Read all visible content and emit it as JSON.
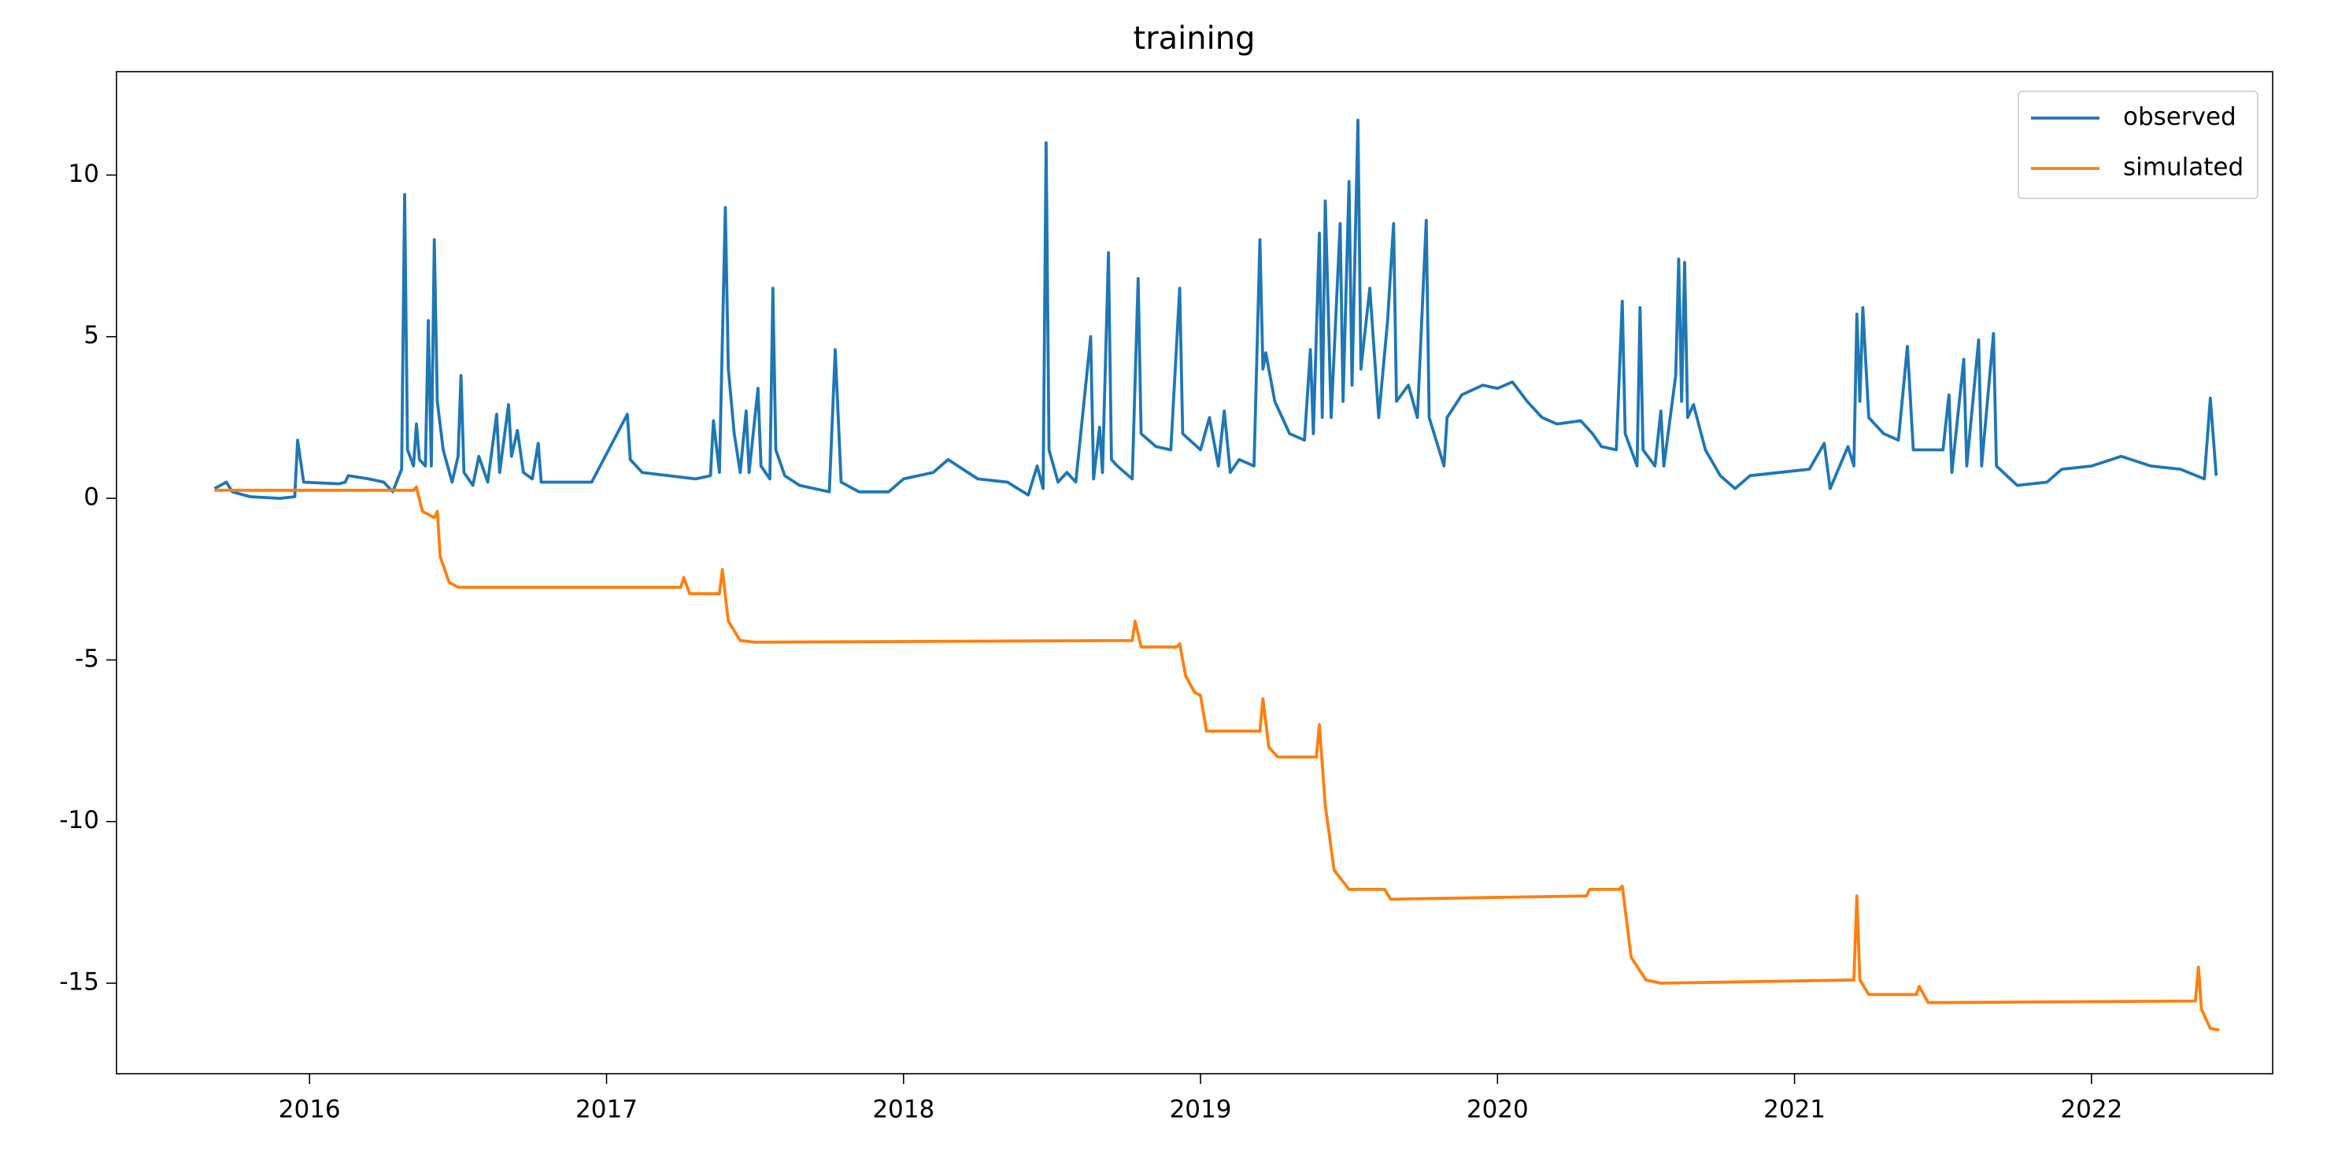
{
  "chart_data": {
    "type": "line",
    "title": "training",
    "xlim": [
      2015.35,
      2022.61
    ],
    "xticks": [
      2016,
      2017,
      2018,
      2019,
      2020,
      2021,
      2022
    ],
    "ylim": [
      -17.8,
      13.2
    ],
    "yticks": [
      -15,
      -10,
      -5,
      0,
      5,
      10
    ],
    "legend": "upper right",
    "series": [
      {
        "name": "observed",
        "color": "#1f77b4",
        "x": [
          2015.68,
          2015.72,
          2015.74,
          2015.8,
          2015.9,
          2015.95,
          2015.96,
          2015.98,
          2016.1,
          2016.12,
          2016.13,
          2016.2,
          2016.25,
          2016.28,
          2016.31,
          2016.32,
          2016.33,
          2016.35,
          2016.36,
          2016.37,
          2016.39,
          2016.4,
          2016.41,
          2016.42,
          2016.43,
          2016.45,
          2016.48,
          2016.5,
          2016.51,
          2016.52,
          2016.55,
          2016.57,
          2016.6,
          2016.63,
          2016.64,
          2016.67,
          2016.68,
          2016.7,
          2016.72,
          2016.75,
          2016.77,
          2016.78,
          2016.95,
          2017.07,
          2017.08,
          2017.12,
          2017.3,
          2017.35,
          2017.36,
          2017.38,
          2017.4,
          2017.41,
          2017.43,
          2017.45,
          2017.47,
          2017.48,
          2017.51,
          2017.52,
          2017.55,
          2017.56,
          2017.57,
          2017.6,
          2017.65,
          2017.75,
          2017.77,
          2017.79,
          2017.85,
          2017.95,
          2018.0,
          2018.1,
          2018.15,
          2018.2,
          2018.25,
          2018.35,
          2018.42,
          2018.45,
          2018.47,
          2018.48,
          2018.49,
          2018.52,
          2018.55,
          2018.58,
          2018.63,
          2018.64,
          2018.66,
          2018.67,
          2018.69,
          2018.7,
          2018.72,
          2018.77,
          2018.79,
          2018.8,
          2018.85,
          2018.9,
          2018.93,
          2018.94,
          2019.0,
          2019.03,
          2019.06,
          2019.08,
          2019.1,
          2019.13,
          2019.18,
          2019.2,
          2019.21,
          2019.22,
          2019.25,
          2019.3,
          2019.35,
          2019.37,
          2019.38,
          2019.4,
          2019.41,
          2019.42,
          2019.44,
          2019.47,
          2019.48,
          2019.5,
          2019.51,
          2019.53,
          2019.54,
          2019.57,
          2019.6,
          2019.63,
          2019.65,
          2019.66,
          2019.7,
          2019.73,
          2019.76,
          2019.77,
          2019.82,
          2019.83,
          2019.88,
          2019.95,
          2020.0,
          2020.05,
          2020.1,
          2020.15,
          2020.2,
          2020.28,
          2020.32,
          2020.35,
          2020.4,
          2020.42,
          2020.43,
          2020.47,
          2020.48,
          2020.49,
          2020.53,
          2020.55,
          2020.56,
          2020.6,
          2020.61,
          2020.62,
          2020.63,
          2020.64,
          2020.66,
          2020.7,
          2020.75,
          2020.8,
          2020.85,
          2020.95,
          2021.05,
          2021.1,
          2021.11,
          2021.12,
          2021.18,
          2021.2,
          2021.21,
          2021.22,
          2021.23,
          2021.25,
          2021.3,
          2021.35,
          2021.38,
          2021.4,
          2021.5,
          2021.52,
          2021.53,
          2021.57,
          2021.58,
          2021.62,
          2021.63,
          2021.67,
          2021.68,
          2021.75,
          2021.85,
          2021.9,
          2022.0,
          2022.1,
          2022.2,
          2022.3,
          2022.38,
          2022.4,
          2022.42
        ],
        "values": [
          0.3,
          0.5,
          0.2,
          0.05,
          0.0,
          0.05,
          1.8,
          0.5,
          0.45,
          0.5,
          0.7,
          0.6,
          0.5,
          0.2,
          0.9,
          9.4,
          1.5,
          1.0,
          2.3,
          1.2,
          1.0,
          5.5,
          1.0,
          8.0,
          3.0,
          1.5,
          0.5,
          1.3,
          3.8,
          0.8,
          0.4,
          1.3,
          0.5,
          2.6,
          0.8,
          2.9,
          1.3,
          2.1,
          0.8,
          0.6,
          1.7,
          0.5,
          0.5,
          2.6,
          1.2,
          0.8,
          0.6,
          0.7,
          2.4,
          0.8,
          9.0,
          4.0,
          2.0,
          0.8,
          2.7,
          0.8,
          3.4,
          1.0,
          0.6,
          6.5,
          1.5,
          0.7,
          0.4,
          0.2,
          4.6,
          0.5,
          0.2,
          0.2,
          0.6,
          0.8,
          1.2,
          0.9,
          0.6,
          0.5,
          0.1,
          1.0,
          0.3,
          11.0,
          1.5,
          0.5,
          0.8,
          0.5,
          5.0,
          0.6,
          2.2,
          0.8,
          7.6,
          1.2,
          1.0,
          0.6,
          6.8,
          2.0,
          1.6,
          1.5,
          6.5,
          2.0,
          1.5,
          2.5,
          1.0,
          2.7,
          0.8,
          1.2,
          1.0,
          8.0,
          4.0,
          4.5,
          3.0,
          2.0,
          1.8,
          4.6,
          2.0,
          8.2,
          2.5,
          9.2,
          2.5,
          8.5,
          3.0,
          9.8,
          3.5,
          11.7,
          4.0,
          6.5,
          2.5,
          5.5,
          8.5,
          3.0,
          3.5,
          2.5,
          8.6,
          2.5,
          1.0,
          2.5,
          3.2,
          3.5,
          3.4,
          3.6,
          3.0,
          2.5,
          2.3,
          2.4,
          2.0,
          1.6,
          1.5,
          6.1,
          2.0,
          1.0,
          5.9,
          1.5,
          1.0,
          2.7,
          1.0,
          3.8,
          7.4,
          3.0,
          7.3,
          2.5,
          2.9,
          1.5,
          0.7,
          0.3,
          0.7,
          0.8,
          0.9,
          1.7,
          1.0,
          0.3,
          1.6,
          1.0,
          5.7,
          3.0,
          5.9,
          2.5,
          2.0,
          1.8,
          4.7,
          1.5,
          1.5,
          3.2,
          0.8,
          4.3,
          1.0,
          4.9,
          1.0,
          5.1,
          1.0,
          0.4,
          0.5,
          0.9,
          1.0,
          1.3,
          1.0,
          0.9,
          0.6,
          3.1,
          0.7
        ]
      },
      {
        "name": "simulated",
        "color": "#ff7f0e",
        "x": [
          2015.68,
          2016.35,
          2016.36,
          2016.38,
          2016.42,
          2016.43,
          2016.44,
          2016.47,
          2016.5,
          2017.25,
          2017.26,
          2017.28,
          2017.38,
          2017.39,
          2017.41,
          2017.45,
          2017.5,
          2018.77,
          2018.78,
          2018.8,
          2018.92,
          2018.93,
          2018.95,
          2018.98,
          2019.0,
          2019.02,
          2019.2,
          2019.21,
          2019.23,
          2019.26,
          2019.39,
          2019.4,
          2019.42,
          2019.45,
          2019.5,
          2019.62,
          2019.64,
          2020.3,
          2020.31,
          2020.41,
          2020.42,
          2020.45,
          2020.5,
          2020.55,
          2021.2,
          2021.21,
          2021.22,
          2021.25,
          2021.41,
          2021.42,
          2021.45,
          2022.35,
          2022.36,
          2022.37,
          2022.4,
          2022.43
        ],
        "values": [
          0.25,
          0.25,
          0.35,
          -0.4,
          -0.6,
          -0.4,
          -1.8,
          -2.6,
          -2.75,
          -2.75,
          -2.45,
          -2.95,
          -2.95,
          -2.2,
          -3.8,
          -4.4,
          -4.45,
          -4.4,
          -3.8,
          -4.6,
          -4.6,
          -4.5,
          -5.5,
          -6.0,
          -6.1,
          -7.2,
          -7.2,
          -6.2,
          -7.7,
          -8.0,
          -8.0,
          -7.0,
          -9.5,
          -11.5,
          -12.1,
          -12.1,
          -12.4,
          -12.3,
          -12.1,
          -12.1,
          -12.0,
          -14.2,
          -14.9,
          -15.0,
          -14.9,
          -12.3,
          -14.9,
          -15.35,
          -15.35,
          -15.1,
          -15.6,
          -15.55,
          -14.5,
          -15.8,
          -16.4,
          -16.45
        ]
      }
    ]
  }
}
